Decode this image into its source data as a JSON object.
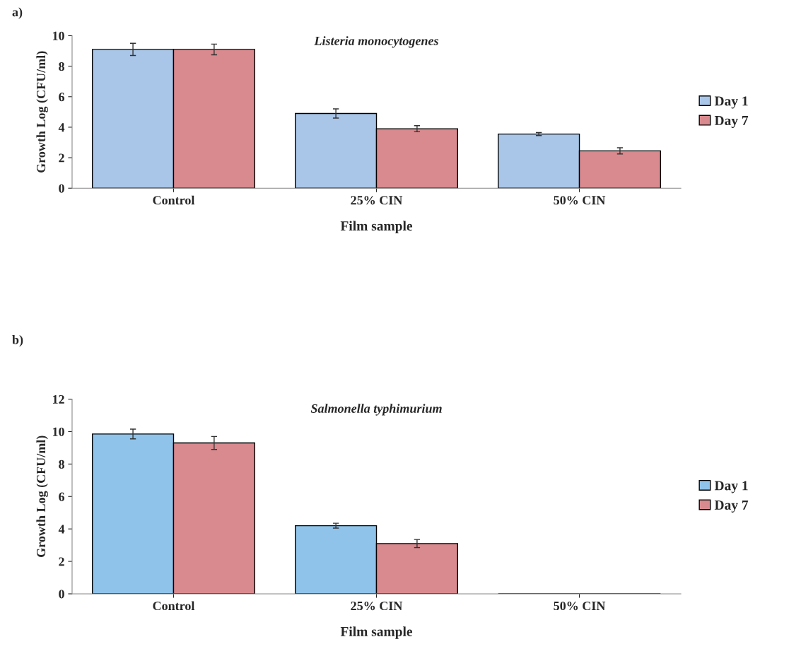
{
  "chart_data": [
    {
      "type": "bar",
      "title": "Listeria monocytogenes",
      "xlabel": "Film sample",
      "ylabel": "Growth Log (CFU/ml)",
      "annotations": [
        "a)"
      ],
      "categories": [
        "Control",
        "25% CIN",
        "50% CIN"
      ],
      "series": [
        {
          "name": "Day 1",
          "color": "#a9c6e8",
          "values": [
            9.1,
            4.9,
            3.55
          ],
          "errors": [
            0.4,
            0.3,
            0.1
          ]
        },
        {
          "name": "Day 7",
          "color": "#d98a8f",
          "values": [
            9.1,
            3.9,
            2.45
          ],
          "errors": [
            0.35,
            0.2,
            0.2
          ]
        }
      ],
      "ylim": [
        0,
        10
      ],
      "yticks": [
        0,
        2,
        4,
        6,
        8,
        10
      ],
      "grid": false,
      "legend": "right"
    },
    {
      "type": "bar",
      "title": "Salmonella typhimurium",
      "xlabel": "Film sample",
      "ylabel": "Growth Log (CFU/ml)",
      "annotations": [
        "b)"
      ],
      "categories": [
        "Control",
        "25% CIN",
        "50% CIN"
      ],
      "series": [
        {
          "name": "Day 1",
          "color": "#8fc3ea",
          "values": [
            9.85,
            4.2,
            0
          ],
          "errors": [
            0.3,
            0.15,
            null
          ]
        },
        {
          "name": "Day 7",
          "color": "#d98a8f",
          "values": [
            9.3,
            3.1,
            0
          ],
          "errors": [
            0.4,
            0.25,
            null
          ]
        }
      ],
      "ylim": [
        0,
        12
      ],
      "yticks": [
        0,
        2,
        4,
        6,
        8,
        10,
        12
      ],
      "grid": false,
      "legend": "right"
    }
  ]
}
